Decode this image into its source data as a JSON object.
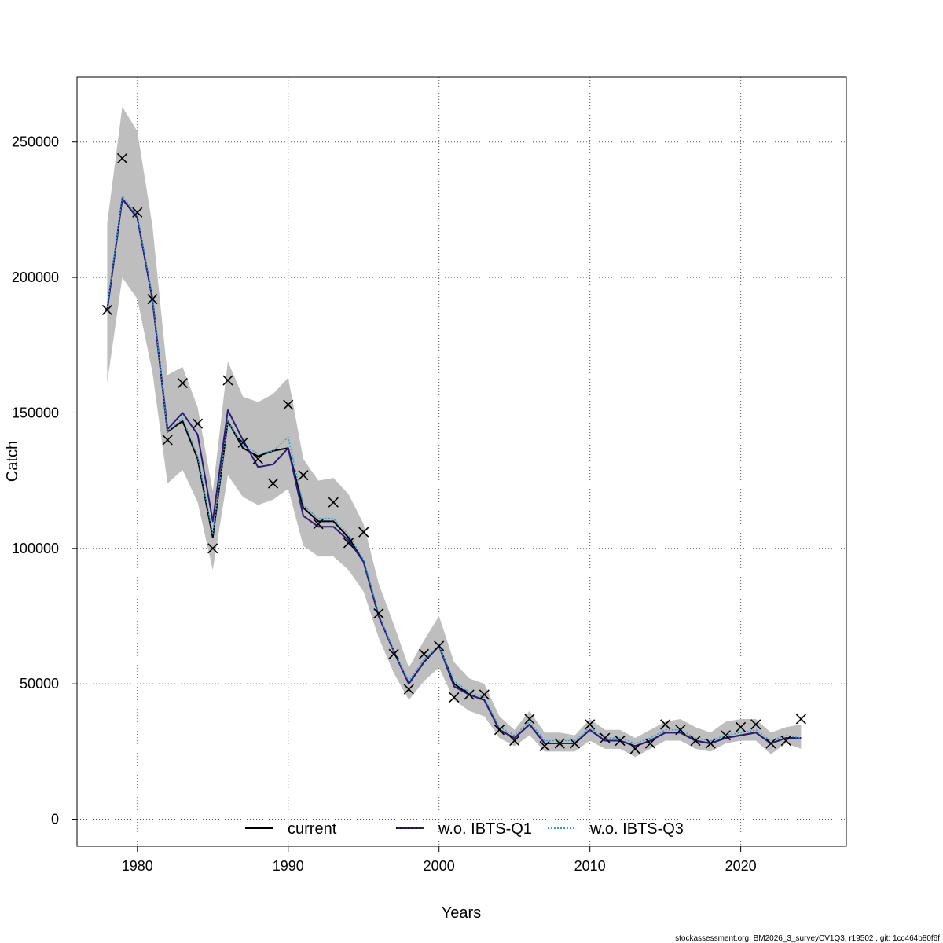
{
  "chart_data": {
    "type": "line",
    "xlabel": "Years",
    "ylabel": "Catch",
    "xlim": [
      1976,
      2027
    ],
    "ylim": [
      -10000,
      274000
    ],
    "grid": true,
    "legend_position": "bottom",
    "x_ticks": [
      1980,
      1990,
      2000,
      2010,
      2020
    ],
    "y_ticks": [
      0,
      50000,
      100000,
      150000,
      200000,
      250000
    ],
    "x_tick_labels": [
      "1980",
      "1990",
      "2000",
      "2010",
      "2020"
    ],
    "y_tick_labels": [
      "0",
      "50000",
      "100000",
      "150000",
      "200000",
      "250000"
    ],
    "x": [
      1978,
      1979,
      1980,
      1981,
      1982,
      1983,
      1984,
      1985,
      1986,
      1987,
      1988,
      1989,
      1990,
      1991,
      1992,
      1993,
      1994,
      1995,
      1996,
      1997,
      1998,
      1999,
      2000,
      2001,
      2002,
      2003,
      2004,
      2005,
      2006,
      2007,
      2008,
      2009,
      2010,
      2011,
      2012,
      2013,
      2014,
      2015,
      2016,
      2017,
      2018,
      2019,
      2020,
      2021,
      2022,
      2023,
      2024
    ],
    "series": [
      {
        "name": "current",
        "color": "#000000",
        "dash": "solid",
        "values": [
          188000,
          229000,
          222000,
          192000,
          143000,
          147000,
          133000,
          104000,
          147000,
          137000,
          134000,
          136000,
          137000,
          115000,
          110000,
          110000,
          104000,
          95000,
          75000,
          62000,
          50000,
          58000,
          64000,
          50000,
          46000,
          44000,
          33000,
          30000,
          35000,
          28000,
          28000,
          28000,
          33000,
          29000,
          29000,
          27000,
          29000,
          32000,
          32000,
          29000,
          28000,
          30000,
          31000,
          32000,
          28000,
          30000,
          30000
        ]
      },
      {
        "name": "w.o. IBTS-Q1",
        "color": "#2d1b7a",
        "dash": "solid",
        "values": [
          188000,
          229000,
          222000,
          192000,
          144000,
          150000,
          142000,
          110000,
          151000,
          140000,
          130000,
          131000,
          137000,
          112000,
          108000,
          108000,
          103000,
          95000,
          75000,
          62000,
          50000,
          58000,
          64000,
          49000,
          46000,
          44000,
          33000,
          30000,
          35000,
          28000,
          28000,
          28000,
          33000,
          29000,
          29000,
          27000,
          29000,
          32000,
          32000,
          29000,
          28000,
          30000,
          31000,
          32000,
          28000,
          30000,
          30000
        ]
      },
      {
        "name": "w.o. IBTS-Q3",
        "color": "#29a3d6",
        "dash": "dotted",
        "values": [
          189000,
          230000,
          223000,
          193000,
          143000,
          148000,
          134000,
          105000,
          147000,
          138000,
          135000,
          136000,
          141000,
          116000,
          111000,
          111000,
          105000,
          96000,
          76000,
          62000,
          51000,
          59000,
          64000,
          51000,
          47000,
          45000,
          34000,
          31000,
          36000,
          29000,
          29000,
          29000,
          34000,
          30000,
          30000,
          28000,
          30000,
          33000,
          33000,
          30000,
          29000,
          31000,
          32000,
          33000,
          29000,
          31000,
          30000
        ]
      }
    ],
    "confidence_band": {
      "lower": [
        161000,
        200000,
        192000,
        165000,
        124000,
        129000,
        117000,
        92000,
        127000,
        119000,
        116000,
        118000,
        122000,
        101000,
        97000,
        97000,
        92000,
        84000,
        67000,
        54000,
        44000,
        51000,
        56000,
        44000,
        40000,
        38000,
        30000,
        27000,
        31000,
        25000,
        25000,
        25000,
        29000,
        26000,
        26000,
        23000,
        26000,
        29000,
        29000,
        26000,
        25000,
        28000,
        29000,
        29000,
        24000,
        28000,
        26000
      ],
      "upper": [
        220000,
        263000,
        254000,
        219000,
        164000,
        167000,
        152000,
        121000,
        169000,
        156000,
        154000,
        157000,
        163000,
        133000,
        125000,
        126000,
        120000,
        109000,
        87000,
        72000,
        56000,
        66000,
        75000,
        58000,
        52000,
        50000,
        38000,
        33000,
        40000,
        32000,
        32000,
        31000,
        37000,
        33000,
        33000,
        30000,
        33000,
        36000,
        37000,
        34000,
        32000,
        36000,
        37000,
        37000,
        32000,
        34000,
        35000
      ],
      "color": "#bebebe"
    },
    "observations": {
      "marker": "x",
      "values": [
        188000,
        244000,
        224000,
        192000,
        140000,
        161000,
        146000,
        100000,
        162000,
        139000,
        133000,
        124000,
        153000,
        127000,
        109000,
        117000,
        102000,
        106000,
        76000,
        61000,
        48000,
        61000,
        64000,
        45000,
        46000,
        46000,
        33000,
        29000,
        37000,
        27000,
        28000,
        28000,
        35000,
        30000,
        29000,
        26000,
        28000,
        35000,
        33000,
        29000,
        28000,
        31000,
        34000,
        35000,
        28000,
        29000,
        37000
      ]
    }
  },
  "footer": "stockassessment.org, BM2026_3_surveyCV1Q3, r19502 , git: 1cc464b80f6f"
}
